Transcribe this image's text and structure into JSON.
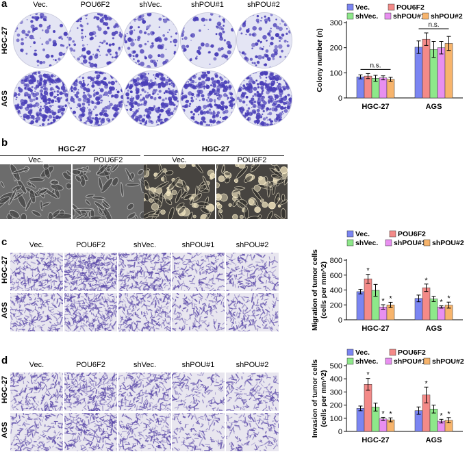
{
  "colors": {
    "vec": "#7b85f2",
    "pou6f2": "#f48a88",
    "shvec": "#8ee88a",
    "shpou1": "#e88ff0",
    "shpou2": "#f7b46c",
    "stain": "#4a3fb8",
    "dish_bg": "#d9dbef"
  },
  "panels": {
    "a": {
      "label": "a",
      "columns": [
        "Vec.",
        "POU6F2",
        "shVec.",
        "shPOU#1",
        "shPOU#2"
      ],
      "rows": [
        "HGC-27",
        "AGS"
      ]
    },
    "b": {
      "label": "b",
      "groups": [
        {
          "title": "HGC-27",
          "columns": [
            "Vec.",
            "POU6F2"
          ]
        },
        {
          "title": "HGC-27",
          "columns": [
            "Vec.",
            "POU6F2"
          ]
        }
      ]
    },
    "c": {
      "label": "c",
      "columns": [
        "Vec.",
        "POU6F2",
        "shVec.",
        "shPOU#1",
        "shPOU#2"
      ],
      "rows": [
        "HGC-27",
        "AGS"
      ]
    },
    "d": {
      "label": "d",
      "columns": [
        "Vec.",
        "POU6F2",
        "shVec.",
        "shPOU#1",
        "shPOU#2"
      ],
      "rows": [
        "HGC-27",
        "AGS"
      ]
    }
  },
  "chart_data": [
    {
      "type": "bar",
      "panel": "a",
      "ylabel": "Colony number (n)",
      "categories": [
        "HGC-27",
        "AGS"
      ],
      "ylim": [
        0,
        300
      ],
      "yticks": [
        0,
        100,
        200,
        300
      ],
      "legend": [
        "Vec.",
        "POU6F2",
        "shVec.",
        "shPOU#1",
        "shPOU#2"
      ],
      "legend_position": "top",
      "series": [
        {
          "name": "Vec.",
          "values": [
            84,
            202
          ],
          "errors": [
            8,
            25
          ]
        },
        {
          "name": "POU6F2",
          "values": [
            87,
            234
          ],
          "errors": [
            10,
            25
          ]
        },
        {
          "name": "shVec.",
          "values": [
            78,
            193
          ],
          "errors": [
            12,
            32
          ]
        },
        {
          "name": "shPOU#1",
          "values": [
            80,
            200
          ],
          "errors": [
            8,
            25
          ]
        },
        {
          "name": "shPOU#2",
          "values": [
            74,
            217
          ],
          "errors": [
            8,
            28
          ]
        }
      ],
      "annotations": [
        "n.s.",
        "n.s."
      ],
      "stars": [
        [
          false,
          false,
          false,
          false,
          false
        ],
        [
          false,
          false,
          false,
          false,
          false
        ]
      ]
    },
    {
      "type": "bar",
      "panel": "c",
      "ylabel": "Migration of tumor cells (cells per mm^2)",
      "ylabel_lines": [
        "Migration of tumor cells",
        "(cells per mm^2)"
      ],
      "categories": [
        "HGC-27",
        "AGS"
      ],
      "ylim": [
        0,
        800
      ],
      "yticks": [
        0,
        200,
        400,
        600,
        800
      ],
      "legend": [
        "Vec.",
        "POU6F2",
        "shVec.",
        "shPOU#1",
        "shPOU#2"
      ],
      "legend_position": "top",
      "series": [
        {
          "name": "Vec.",
          "values": [
            378,
            287
          ],
          "errors": [
            30,
            45
          ]
        },
        {
          "name": "POU6F2",
          "values": [
            550,
            430
          ],
          "errors": [
            60,
            50
          ]
        },
        {
          "name": "shVec.",
          "values": [
            395,
            280
          ],
          "errors": [
            80,
            35
          ]
        },
        {
          "name": "shPOU#1",
          "values": [
            172,
            172
          ],
          "errors": [
            30,
            15
          ]
        },
        {
          "name": "shPOU#2",
          "values": [
            200,
            197
          ],
          "errors": [
            35,
            40
          ]
        }
      ],
      "annotations": [],
      "stars": [
        [
          false,
          true,
          false,
          true,
          true
        ],
        [
          false,
          true,
          false,
          true,
          true
        ]
      ],
      "star_label": "*"
    },
    {
      "type": "bar",
      "panel": "d",
      "ylabel": "Invasion of tumor cells (cells per mm^2)",
      "ylabel_lines": [
        "Invasion of tumor cells",
        "(cells per mm^2)"
      ],
      "categories": [
        "HGC-27",
        "AGS"
      ],
      "ylim": [
        0,
        500
      ],
      "yticks": [
        0,
        100,
        200,
        300,
        400,
        500
      ],
      "legend": [
        "Vec.",
        "POU6F2",
        "shVec.",
        "shPOU#1",
        "shPOU#2"
      ],
      "legend_position": "top",
      "series": [
        {
          "name": "Vec.",
          "values": [
            175,
            158
          ],
          "errors": [
            18,
            28
          ]
        },
        {
          "name": "POU6F2",
          "values": [
            358,
            277
          ],
          "errors": [
            45,
            60
          ]
        },
        {
          "name": "shVec.",
          "values": [
            185,
            170
          ],
          "errors": [
            30,
            30
          ]
        },
        {
          "name": "shPOU#1",
          "values": [
            95,
            78
          ],
          "errors": [
            12,
            14
          ]
        },
        {
          "name": "shPOU#2",
          "values": [
            88,
            85
          ],
          "errors": [
            15,
            20
          ]
        }
      ],
      "annotations": [],
      "stars": [
        [
          false,
          true,
          false,
          true,
          true
        ],
        [
          false,
          true,
          false,
          true,
          true
        ]
      ],
      "star_label": "*"
    }
  ]
}
